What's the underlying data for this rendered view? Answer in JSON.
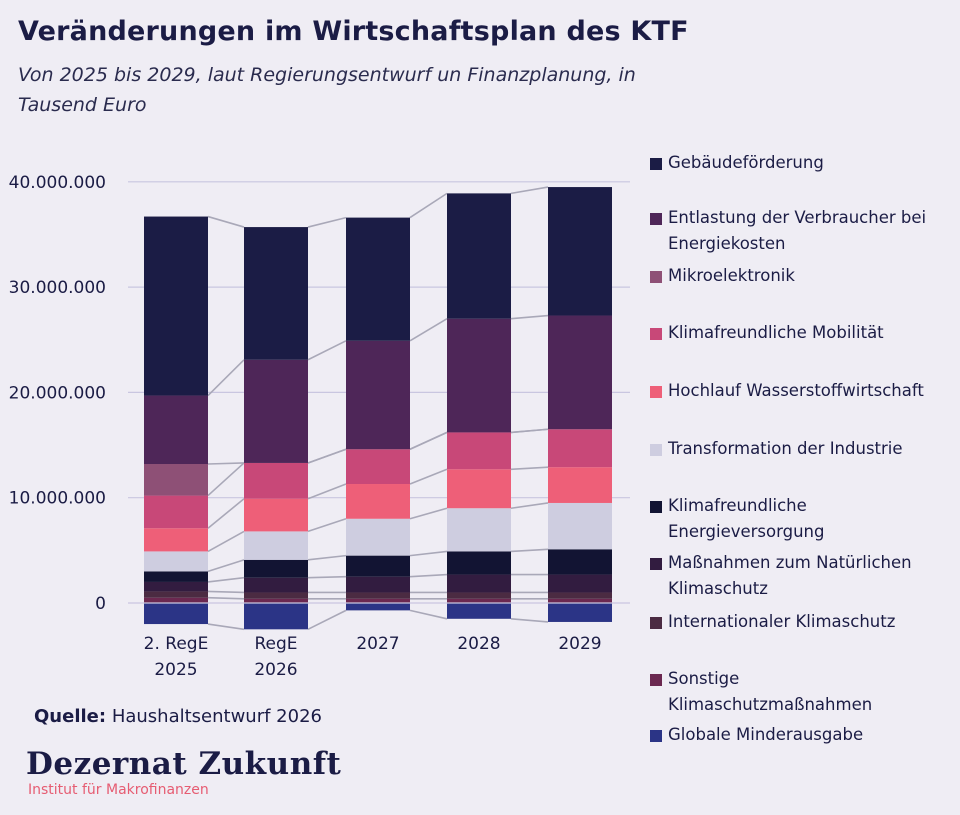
{
  "title": "Veränderungen im Wirtschaftsplan des KTF",
  "subtitle": "Von 2025 bis 2029, laut Regierungsentwurf un Finanzplanung, in Tausend Euro",
  "source_label": "Quelle:",
  "source_text": "Haushaltsentwurf 2026",
  "brand_name": "Dezernat Zukunft",
  "brand_tagline": "Institut für Makrofinanzen",
  "chart_data": {
    "type": "bar",
    "stacked": true,
    "categories": [
      "2. RegE 2025",
      "RegE 2026",
      "2027",
      "2028",
      "2029"
    ],
    "y_tick_labels": [
      "0",
      "10.000.000",
      "20.000.000",
      "30.000.000",
      "40.000.000"
    ],
    "ylim": [
      -2500000,
      40000000
    ],
    "grid": true,
    "legend_position": "right",
    "connector_lines": true,
    "series": [
      {
        "name": "Globale Minderausgabe",
        "color": "#2b3486",
        "values": [
          -2000000,
          -2500000,
          -700000,
          -1500000,
          -1800000
        ]
      },
      {
        "name": "Sonstige Klimaschutzmaßnahmen",
        "color": "#6b2850",
        "values": [
          500000,
          400000,
          400000,
          400000,
          400000
        ]
      },
      {
        "name": "Internationaler Klimaschutz",
        "color": "#4b2b42",
        "values": [
          600000,
          600000,
          600000,
          600000,
          600000
        ]
      },
      {
        "name": "Maßnahmen zum Natürlichen Klimaschutz",
        "color": "#321c40",
        "values": [
          900000,
          1400000,
          1500000,
          1700000,
          1700000
        ]
      },
      {
        "name": "Klimafreundliche Energieversorgung",
        "color": "#121433",
        "values": [
          1000000,
          1700000,
          2000000,
          2200000,
          2400000
        ]
      },
      {
        "name": "Transformation der Industrie",
        "color": "#cecde0",
        "values": [
          1900000,
          2700000,
          3500000,
          4100000,
          4400000
        ]
      },
      {
        "name": "Hochlauf Wasserstoffwirtschaft",
        "color": "#ee5f78",
        "values": [
          2200000,
          3100000,
          3300000,
          3700000,
          3400000
        ]
      },
      {
        "name": "Klimafreundliche Mobilität",
        "color": "#c84878",
        "values": [
          3100000,
          3400000,
          3300000,
          3500000,
          3600000
        ]
      },
      {
        "name": "Mikroelektronik",
        "color": "#8e5076",
        "values": [
          3000000,
          0,
          0,
          0,
          0
        ]
      },
      {
        "name": "Entlastung der Verbraucher bei Energiekosten",
        "color": "#4e2658",
        "values": [
          6500000,
          9800000,
          10300000,
          10800000,
          10800000
        ]
      },
      {
        "name": "Gebäudeförderung",
        "color": "#1b1c45",
        "values": [
          17000000,
          12600000,
          11700000,
          11900000,
          12200000
        ]
      }
    ]
  }
}
